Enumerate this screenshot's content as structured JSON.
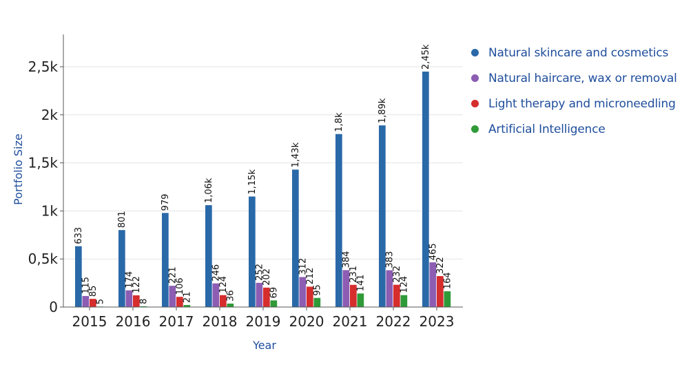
{
  "chart_data": {
    "type": "bar",
    "title": "",
    "xlabel": "Year",
    "ylabel": "Portfolio Size",
    "categories": [
      "2015",
      "2016",
      "2017",
      "2018",
      "2019",
      "2020",
      "2021",
      "2022",
      "2023"
    ],
    "ylim": [
      0,
      2800
    ],
    "yticks": [
      0,
      500,
      1000,
      1500,
      2000,
      2500
    ],
    "ytick_labels": [
      "0",
      "0,5k",
      "1k",
      "1,5k",
      "2k",
      "2,5k"
    ],
    "grid": true,
    "legend_position": "right",
    "series": [
      {
        "name": "Natural skincare and cosmetics",
        "color": "#2a69a8",
        "values": [
          633,
          801,
          979,
          1060,
          1150,
          1430,
          1800,
          1890,
          2450
        ],
        "labels": [
          "633",
          "801",
          "979",
          "1,06k",
          "1,15k",
          "1,43k",
          "1,8k",
          "1,89k",
          "2,45k"
        ]
      },
      {
        "name": "Natural haircare, wax or removal",
        "color": "#8c5db3",
        "values": [
          115,
          174,
          221,
          246,
          252,
          312,
          384,
          383,
          465
        ],
        "labels": [
          "115",
          "174",
          "221",
          "246",
          "252",
          "312",
          "384",
          "383",
          "465"
        ]
      },
      {
        "name": "Light therapy and microneedling",
        "color": "#d62d2d",
        "values": [
          85,
          122,
          106,
          124,
          202,
          212,
          231,
          232,
          322
        ],
        "labels": [
          "85",
          "122",
          "106",
          "124",
          "202",
          "212",
          "231",
          "232",
          "322"
        ]
      },
      {
        "name": "Artificial Intelligence",
        "color": "#2e9a38",
        "values": [
          5,
          8,
          21,
          36,
          69,
          95,
          141,
          124,
          164
        ],
        "labels": [
          "5",
          "8",
          "21",
          "36",
          "69",
          "95",
          "141",
          "124",
          "164"
        ]
      }
    ]
  },
  "legend": {
    "items": [
      {
        "label": "Natural skincare and cosmetics",
        "color": "#2a69a8"
      },
      {
        "label": "Natural haircare, wax or removal",
        "color": "#8c5db3"
      },
      {
        "label": "Light therapy and microneedling",
        "color": "#d62d2d"
      },
      {
        "label": "Artificial Intelligence",
        "color": "#2e9a38"
      }
    ]
  }
}
